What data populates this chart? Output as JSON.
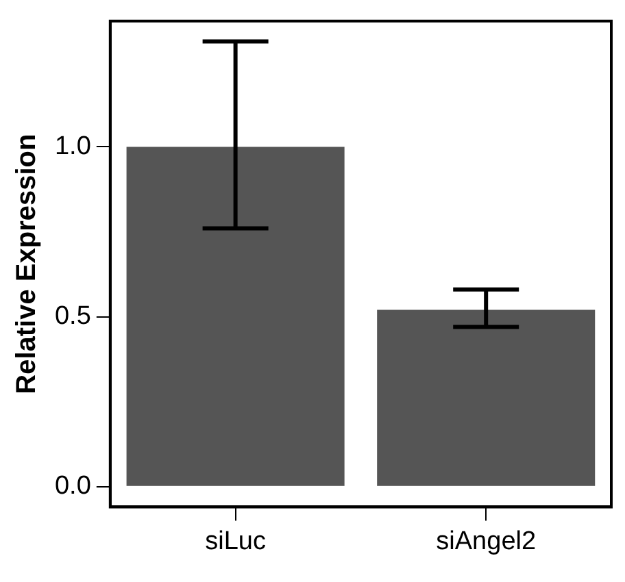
{
  "chart_data": {
    "type": "bar",
    "ylabel": "Relative Expression",
    "categories": [
      "siLuc",
      "siAngel2"
    ],
    "values": [
      1.0,
      0.52
    ],
    "color": "#555555",
    "errors": [
      [
        0.76,
        1.31
      ],
      [
        0.47,
        0.58
      ]
    ],
    "ylim": [
      -0.06,
      1.37
    ],
    "yticks": [
      {
        "value": 0,
        "label": "0.0"
      },
      0.5,
      {
        "value": 1,
        "label": "1.0"
      }
    ],
    "grid": false,
    "legend": false
  }
}
